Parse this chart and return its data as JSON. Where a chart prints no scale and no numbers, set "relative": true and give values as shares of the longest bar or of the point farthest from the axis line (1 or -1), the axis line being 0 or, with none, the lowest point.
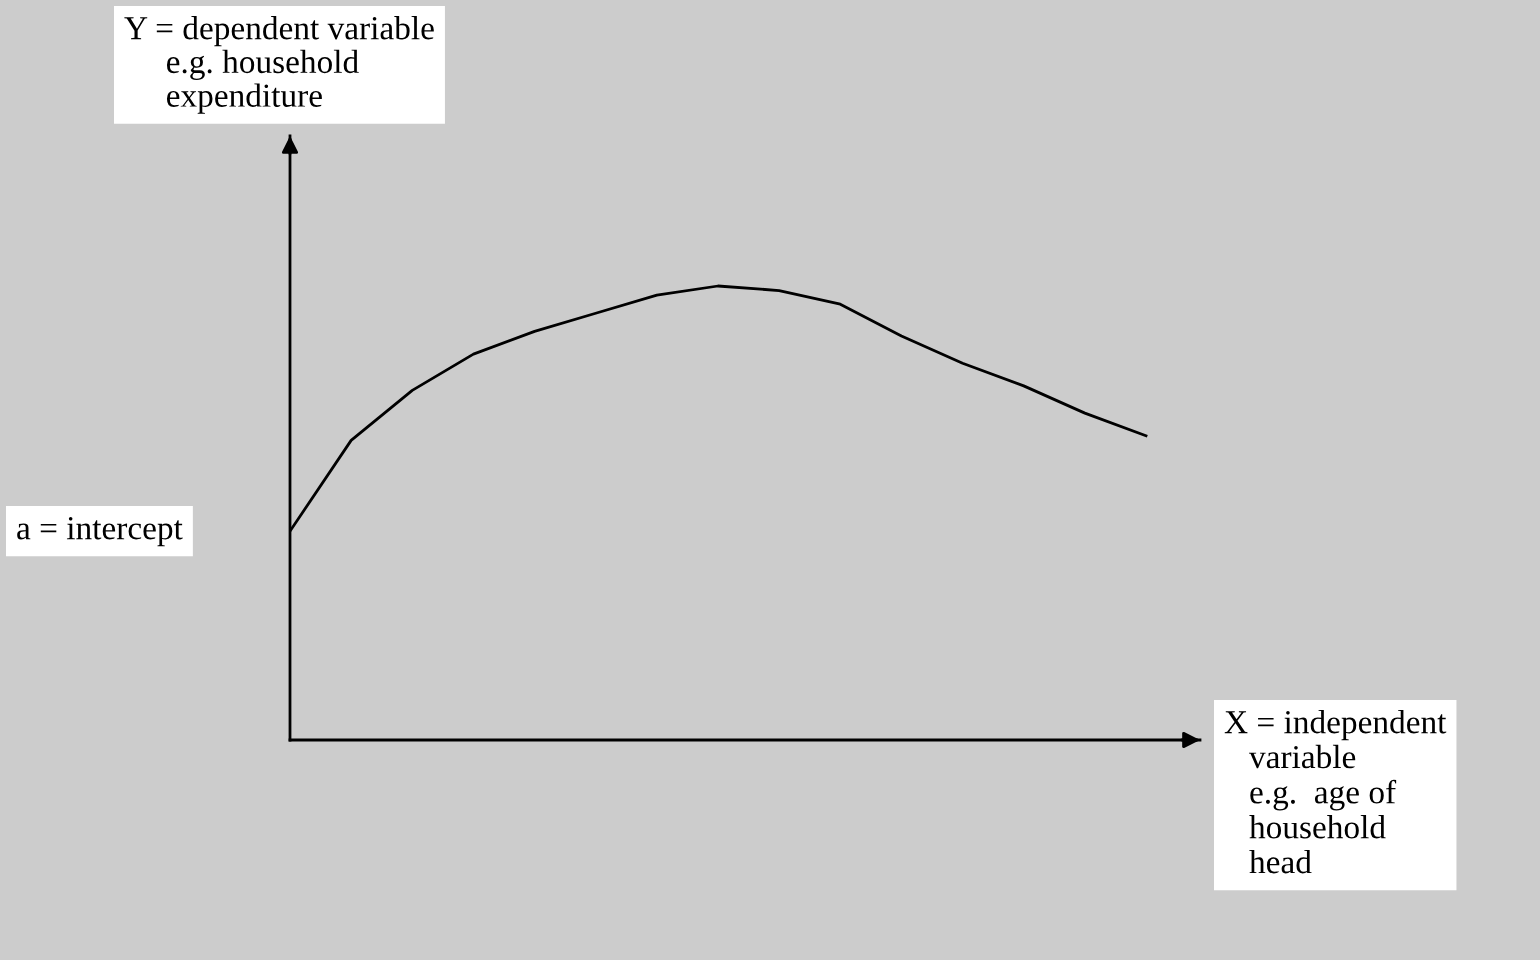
{
  "chart_data": {
    "type": "line",
    "relative": true,
    "xlabel": "X = independent\n   variable\n   e.g.  age of\n   household\n   head",
    "annotations": [
      "Y = dependent variable\n     e.g. household\n     expenditure",
      "a = intercept"
    ],
    "categories": [
      null,
      null,
      null,
      null,
      null,
      null,
      null,
      null,
      null,
      null,
      null,
      null,
      null,
      null,
      null
    ],
    "series": [
      {
        "color": "#000000",
        "values": [
          0.46,
          0.66,
          0.77,
          0.85,
          0.9,
          0.94,
          0.98,
          1.0,
          0.99,
          0.96,
          0.89,
          0.83,
          0.78,
          0.72,
          0.67
        ]
      }
    ],
    "marker": "none",
    "line_style": "solid",
    "legend": false
  }
}
